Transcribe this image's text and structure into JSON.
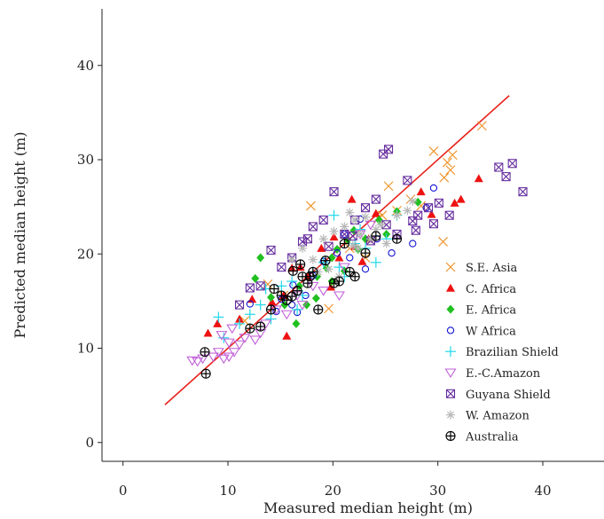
{
  "chart_data": {
    "type": "scatter",
    "title": "",
    "xlabel": "Measured median height (m)",
    "ylabel": "Predicted median height (m)",
    "xlim": [
      -2,
      46
    ],
    "ylim": [
      -2,
      46
    ],
    "xticks": [
      0,
      10,
      20,
      30,
      40
    ],
    "yticks": [
      0,
      10,
      20,
      30,
      40
    ],
    "grid": false,
    "legend_position": "bottom-right",
    "fit_line": {
      "x": [
        4,
        36.8
      ],
      "y": [
        4,
        36.8
      ],
      "color": "#e8231c"
    },
    "series": [
      {
        "name": "S.E. Asia",
        "marker": "x",
        "color": "#f0962e",
        "points": [
          [
            34.2,
            33.6
          ],
          [
            29.6,
            30.9
          ],
          [
            31.4,
            30.5
          ],
          [
            30.9,
            29.7
          ],
          [
            31.2,
            28.9
          ],
          [
            30.6,
            28.1
          ],
          [
            25.3,
            27.2
          ],
          [
            27.4,
            25.8
          ],
          [
            17.9,
            25.1
          ],
          [
            30.5,
            21.3
          ],
          [
            24.7,
            24.1
          ],
          [
            28.4,
            25.1
          ],
          [
            24.3,
            23.8
          ],
          [
            26.1,
            24.6
          ],
          [
            21.6,
            20.6
          ],
          [
            23.1,
            19.6
          ],
          [
            13.8,
            16.8
          ],
          [
            15.3,
            15.6
          ],
          [
            19.6,
            14.2
          ],
          [
            11.6,
            12.9
          ]
        ]
      },
      {
        "name": "C. Africa",
        "marker": "triangle",
        "color": "#ee1111",
        "points": [
          [
            33.9,
            28.0
          ],
          [
            32.2,
            25.8
          ],
          [
            31.6,
            25.4
          ],
          [
            28.4,
            26.6
          ],
          [
            29.4,
            24.2
          ],
          [
            24.1,
            24.3
          ],
          [
            21.8,
            25.8
          ],
          [
            20.1,
            21.8
          ],
          [
            22.1,
            20.8
          ],
          [
            18.9,
            20.6
          ],
          [
            16.9,
            18.6
          ],
          [
            17.6,
            17.6
          ],
          [
            15.3,
            15.6
          ],
          [
            14.2,
            14.9
          ],
          [
            11.1,
            13.1
          ],
          [
            8.1,
            11.6
          ],
          [
            15.6,
            11.3
          ],
          [
            9.0,
            12.6
          ],
          [
            12.3,
            15.2
          ],
          [
            19.8,
            16.5
          ],
          [
            22.8,
            19.2
          ],
          [
            23.4,
            21.6
          ],
          [
            20.6,
            19.6
          ],
          [
            16.1,
            18.5
          ]
        ]
      },
      {
        "name": "E. Africa",
        "marker": "diamond",
        "color": "#20c020",
        "points": [
          [
            12.6,
            17.4
          ],
          [
            13.1,
            19.6
          ],
          [
            14.1,
            15.4
          ],
          [
            15.4,
            14.6
          ],
          [
            16.5,
            12.6
          ],
          [
            17.5,
            14.6
          ],
          [
            18.5,
            17.6
          ],
          [
            19.4,
            18.5
          ],
          [
            19.9,
            19.6
          ],
          [
            20.4,
            20.5
          ],
          [
            21.4,
            21.5
          ],
          [
            22.0,
            22.5
          ],
          [
            22.4,
            20.5
          ],
          [
            23.1,
            21.6
          ],
          [
            24.4,
            23.6
          ],
          [
            25.1,
            22.1
          ],
          [
            28.1,
            25.5
          ],
          [
            19.9,
            17.1
          ],
          [
            21.1,
            18.2
          ],
          [
            18.4,
            15.3
          ],
          [
            26.1,
            24.5
          ],
          [
            16.8,
            16.6
          ]
        ]
      },
      {
        "name": "W Africa",
        "marker": "circle",
        "color": "#1515d0",
        "points": [
          [
            12.1,
            14.7
          ],
          [
            15.1,
            15.2
          ],
          [
            16.1,
            14.6
          ],
          [
            16.6,
            13.8
          ],
          [
            17.4,
            15.6
          ],
          [
            18.1,
            17.7
          ],
          [
            19.1,
            19.2
          ],
          [
            20.4,
            20.1
          ],
          [
            21.6,
            19.6
          ],
          [
            23.1,
            18.4
          ],
          [
            24.2,
            21.6
          ],
          [
            25.6,
            20.1
          ],
          [
            27.6,
            21.1
          ],
          [
            29.6,
            27.0
          ],
          [
            28.9,
            24.9
          ],
          [
            16.2,
            16.7
          ],
          [
            14.6,
            13.9
          ],
          [
            21.1,
            22.1
          ],
          [
            22.6,
            23.7
          ]
        ]
      },
      {
        "name": "Brazilian Shield",
        "marker": "plus",
        "color": "#20d8e8",
        "points": [
          [
            9.1,
            13.3
          ],
          [
            9.6,
            11.1
          ],
          [
            11.1,
            12.6
          ],
          [
            12.1,
            13.6
          ],
          [
            13.1,
            14.6
          ],
          [
            14.1,
            13.1
          ],
          [
            15.1,
            16.6
          ],
          [
            16.1,
            17.1
          ],
          [
            17.1,
            15.6
          ],
          [
            18.1,
            18.1
          ],
          [
            19.1,
            19.1
          ],
          [
            20.1,
            24.1
          ],
          [
            21.1,
            17.6
          ],
          [
            22.1,
            21.1
          ],
          [
            23.1,
            20.6
          ],
          [
            24.1,
            19.1
          ],
          [
            25.1,
            21.6
          ],
          [
            26.1,
            24.1
          ],
          [
            13.6,
            16.3
          ],
          [
            16.6,
            14.1
          ],
          [
            20.6,
            18.6
          ],
          [
            22.6,
            22.6
          ]
        ]
      },
      {
        "name": "E.-C.Amazon",
        "marker": "triangle-down",
        "color": "#c060d8",
        "points": [
          [
            6.6,
            8.7
          ],
          [
            7.1,
            8.6
          ],
          [
            7.6,
            8.9
          ],
          [
            8.6,
            9.1
          ],
          [
            9.1,
            9.6
          ],
          [
            9.6,
            8.9
          ],
          [
            10.1,
            9.1
          ],
          [
            10.1,
            10.6
          ],
          [
            10.6,
            9.6
          ],
          [
            11.1,
            10.4
          ],
          [
            11.6,
            11.1
          ],
          [
            12.6,
            10.9
          ],
          [
            13.1,
            11.6
          ],
          [
            13.6,
            12.6
          ],
          [
            14.6,
            14.1
          ],
          [
            15.6,
            13.6
          ],
          [
            16.6,
            15.6
          ],
          [
            17.1,
            14.6
          ],
          [
            18.1,
            16.6
          ],
          [
            19.1,
            16.1
          ],
          [
            20.6,
            15.6
          ],
          [
            21.1,
            18.6
          ],
          [
            22.6,
            22.1
          ],
          [
            23.6,
            23.1
          ],
          [
            9.4,
            11.4
          ],
          [
            10.4,
            12.1
          ]
        ]
      },
      {
        "name": "Guyana Shield",
        "marker": "square-x",
        "color": "#6830a0",
        "points": [
          [
            24.8,
            30.6
          ],
          [
            25.3,
            31.1
          ],
          [
            35.8,
            29.2
          ],
          [
            37.1,
            29.6
          ],
          [
            36.5,
            28.2
          ],
          [
            38.1,
            26.6
          ],
          [
            31.1,
            24.1
          ],
          [
            30.1,
            25.4
          ],
          [
            29.1,
            24.9
          ],
          [
            28.1,
            24.1
          ],
          [
            27.1,
            27.8
          ],
          [
            26.1,
            22.1
          ],
          [
            25.1,
            23.1
          ],
          [
            24.1,
            25.8
          ],
          [
            23.1,
            24.9
          ],
          [
            22.1,
            23.6
          ],
          [
            21.1,
            22.1
          ],
          [
            20.1,
            26.6
          ],
          [
            19.1,
            23.6
          ],
          [
            18.1,
            22.9
          ],
          [
            17.1,
            21.3
          ],
          [
            16.1,
            19.6
          ],
          [
            15.1,
            18.6
          ],
          [
            14.1,
            20.4
          ],
          [
            13.1,
            16.6
          ],
          [
            12.1,
            16.4
          ],
          [
            11.1,
            14.6
          ],
          [
            17.6,
            21.6
          ],
          [
            19.6,
            20.8
          ],
          [
            21.9,
            21.9
          ],
          [
            23.6,
            21.4
          ],
          [
            27.6,
            23.5
          ],
          [
            29.6,
            23.2
          ],
          [
            27.9,
            22.5
          ]
        ]
      },
      {
        "name": "W. Amazon",
        "marker": "asterisk",
        "color": "#b8b8b8",
        "points": [
          [
            16.1,
            19.4
          ],
          [
            17.1,
            20.6
          ],
          [
            18.1,
            19.4
          ],
          [
            19.1,
            21.6
          ],
          [
            20.1,
            22.4
          ],
          [
            21.1,
            22.9
          ],
          [
            21.6,
            24.4
          ],
          [
            22.1,
            23.6
          ],
          [
            22.6,
            22.1
          ],
          [
            23.1,
            23.9
          ],
          [
            23.6,
            21.6
          ],
          [
            24.1,
            22.6
          ],
          [
            25.1,
            21.1
          ],
          [
            26.1,
            24.1
          ],
          [
            27.1,
            24.6
          ],
          [
            27.6,
            25.6
          ],
          [
            19.6,
            18.4
          ],
          [
            20.6,
            17.6
          ],
          [
            18.6,
            18.1
          ],
          [
            24.6,
            23.1
          ],
          [
            22.4,
            20.6
          ],
          [
            21.9,
            20.9
          ]
        ]
      },
      {
        "name": "Australia",
        "marker": "circle-plus",
        "color": "#000000",
        "points": [
          [
            7.9,
            7.3
          ],
          [
            7.8,
            9.6
          ],
          [
            12.1,
            12.1
          ],
          [
            13.1,
            12.3
          ],
          [
            14.1,
            14.1
          ],
          [
            14.4,
            16.3
          ],
          [
            15.1,
            15.6
          ],
          [
            15.6,
            15.1
          ],
          [
            16.1,
            15.5
          ],
          [
            16.2,
            18.2
          ],
          [
            16.6,
            16.1
          ],
          [
            17.1,
            17.6
          ],
          [
            17.6,
            16.9
          ],
          [
            17.8,
            17.6
          ],
          [
            18.1,
            18.1
          ],
          [
            18.6,
            14.1
          ],
          [
            19.3,
            19.3
          ],
          [
            20.1,
            16.9
          ],
          [
            20.6,
            17.1
          ],
          [
            21.1,
            21.1
          ],
          [
            21.6,
            18.1
          ],
          [
            22.1,
            17.6
          ],
          [
            23.1,
            20.1
          ],
          [
            24.1,
            21.9
          ],
          [
            26.1,
            21.6
          ],
          [
            16.9,
            18.9
          ]
        ]
      }
    ]
  }
}
